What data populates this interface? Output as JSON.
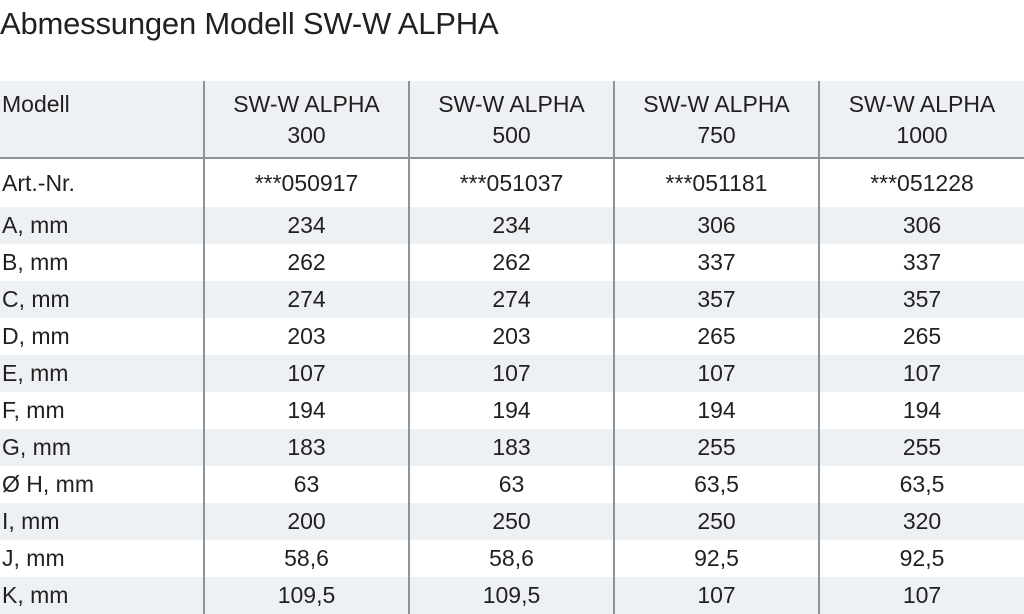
{
  "title": "Abmessungen Modell SW-W ALPHA",
  "table": {
    "header_label": "Modell",
    "models": [
      {
        "line1": "SW-W ALPHA",
        "line2": "300"
      },
      {
        "line1": "SW-W ALPHA",
        "line2": "500"
      },
      {
        "line1": "SW-W ALPHA",
        "line2": "750"
      },
      {
        "line1": "SW-W ALPHA",
        "line2": "1000"
      }
    ],
    "rows": [
      {
        "label": "Art.-Nr.",
        "values": [
          "***050917",
          "***051037",
          "***051181",
          "***051228"
        ]
      },
      {
        "label": "A, mm",
        "values": [
          "234",
          "234",
          "306",
          "306"
        ]
      },
      {
        "label": "B, mm",
        "values": [
          "262",
          "262",
          "337",
          "337"
        ]
      },
      {
        "label": "C, mm",
        "values": [
          "274",
          "274",
          "357",
          "357"
        ]
      },
      {
        "label": "D, mm",
        "values": [
          "203",
          "203",
          "265",
          "265"
        ]
      },
      {
        "label": "E, mm",
        "values": [
          "107",
          "107",
          "107",
          "107"
        ]
      },
      {
        "label": "F, mm",
        "values": [
          "194",
          "194",
          "194",
          "194"
        ]
      },
      {
        "label": "G, mm",
        "values": [
          "183",
          "183",
          "255",
          "255"
        ]
      },
      {
        "label": "Ø H, mm",
        "values": [
          "63",
          "63",
          "63,5",
          "63,5"
        ]
      },
      {
        "label": "I, mm",
        "values": [
          "200",
          "250",
          "250",
          "320"
        ]
      },
      {
        "label": "J, mm",
        "values": [
          "58,6",
          "58,6",
          "92,5",
          "92,5"
        ]
      },
      {
        "label": "K, mm",
        "values": [
          "109,5",
          "109,5",
          "107",
          "107"
        ]
      }
    ]
  }
}
